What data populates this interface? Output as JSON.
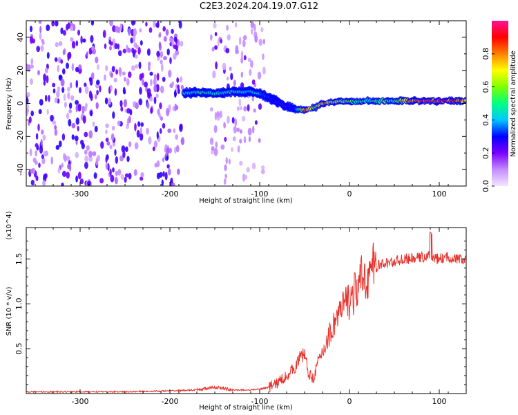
{
  "title": "C2E3.2024.204.19.07.G12",
  "chart_data": [
    {
      "type": "heatmap",
      "title": "",
      "xlabel": "Height of straight line (km)",
      "ylabel": "Frequency (Hz)",
      "xlim": [
        -360,
        130
      ],
      "ylim": [
        -50,
        50
      ],
      "xticks": [
        -300,
        -200,
        -100,
        0,
        100
      ],
      "yticks": [
        -40,
        -20,
        0,
        20,
        40
      ],
      "colorbar": {
        "label": "Normalized spectral amplitude",
        "range": [
          0.0,
          1.0
        ],
        "ticks": [
          0.0,
          0.2,
          0.4,
          0.6,
          0.8
        ],
        "colors": [
          "#f3e6ff",
          "#c48cff",
          "#7a00ff",
          "#0000ff",
          "#00c8ff",
          "#00ff80",
          "#80ff00",
          "#ffff00",
          "#ff8000",
          "#ff0000",
          "#ff1493"
        ]
      },
      "ridge": {
        "x": [
          -185,
          -170,
          -150,
          -130,
          -110,
          -95,
          -80,
          -70,
          -60,
          -50,
          -40,
          -30,
          -20,
          -10,
          0,
          20,
          50,
          80,
          100,
          130
        ],
        "frequency": [
          6,
          7,
          6,
          7,
          7,
          5,
          1,
          -2,
          -3,
          -4,
          -3,
          0,
          1,
          1,
          1,
          1.5,
          1.5,
          1.5,
          1.5,
          1.5
        ],
        "amplitude": [
          0.45,
          0.5,
          0.45,
          0.5,
          0.45,
          0.35,
          0.25,
          0.25,
          0.3,
          0.85,
          0.6,
          0.8,
          0.7,
          0.6,
          0.55,
          0.5,
          0.55,
          0.9,
          0.9,
          0.8
        ]
      },
      "noise_regions": [
        [
          -360,
          -185
        ],
        [
          -155,
          -95
        ]
      ]
    },
    {
      "type": "line",
      "title": "",
      "xlabel": "Height of straight line (km)",
      "ylabel": "SNR (10 * v/v)",
      "scale_label": "(x10^4)",
      "xlim": [
        -360,
        130
      ],
      "ylim": [
        0,
        1.85
      ],
      "xticks": [
        -300,
        -200,
        -100,
        0,
        100
      ],
      "yticks": [
        0.5,
        1.0,
        1.5
      ],
      "color": "#e8322c",
      "series": [
        {
          "x": [
            -360,
            -300,
            -250,
            -200,
            -170,
            -150,
            -130,
            -110,
            -100,
            -90,
            -80,
            -70,
            -60,
            -55,
            -50,
            -45,
            -40,
            -35,
            -30,
            -25,
            -20,
            -15,
            -10,
            -5,
            0,
            5,
            10,
            15,
            20,
            25,
            30,
            40,
            50,
            60,
            70,
            80,
            85,
            90,
            95,
            100,
            110,
            120,
            130
          ],
          "values": [
            0.02,
            0.02,
            0.02,
            0.03,
            0.04,
            0.07,
            0.04,
            0.04,
            0.05,
            0.07,
            0.12,
            0.2,
            0.3,
            0.4,
            0.45,
            0.2,
            0.18,
            0.35,
            0.45,
            0.6,
            0.7,
            0.85,
            0.9,
            1.0,
            1.05,
            1.1,
            1.2,
            1.3,
            1.3,
            1.38,
            1.42,
            1.45,
            1.47,
            1.5,
            1.5,
            1.52,
            1.52,
            1.55,
            1.5,
            1.5,
            1.52,
            1.5,
            1.48
          ]
        }
      ]
    }
  ]
}
